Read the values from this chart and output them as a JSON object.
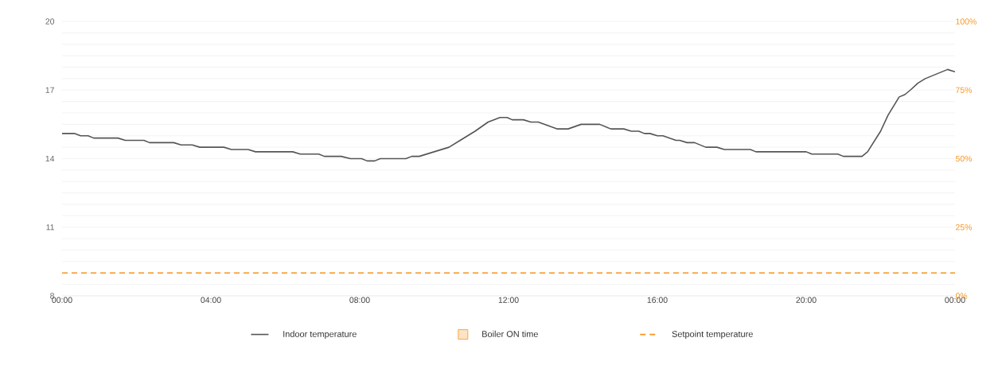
{
  "chart_data": {
    "type": "line",
    "xlim": [
      0,
      24
    ],
    "xticks": [
      {
        "value": 0,
        "label": "00:00"
      },
      {
        "value": 4,
        "label": "04:00"
      },
      {
        "value": 8,
        "label": "08:00"
      },
      {
        "value": 12,
        "label": "12:00"
      },
      {
        "value": 16,
        "label": "16:00"
      },
      {
        "value": 20,
        "label": "20:00"
      },
      {
        "value": 24,
        "label": "00:00"
      }
    ],
    "ylim": [
      8,
      20
    ],
    "yticks": [
      8,
      {
        "value": 8.5,
        "label": null
      },
      {
        "value": 9,
        "label": null
      },
      {
        "value": 9.5,
        "label": null
      },
      {
        "value": 10,
        "label": null
      },
      {
        "value": 10.5,
        "label": null
      },
      11,
      {
        "value": 11.5,
        "label": null
      },
      {
        "value": 12,
        "label": null
      },
      {
        "value": 12.5,
        "label": null
      },
      {
        "value": 13,
        "label": null
      },
      {
        "value": 13.5,
        "label": null
      },
      14,
      {
        "value": 14.5,
        "label": null
      },
      {
        "value": 15,
        "label": null
      },
      {
        "value": 15.5,
        "label": null
      },
      {
        "value": 16,
        "label": null
      },
      {
        "value": 16.5,
        "label": null
      },
      17,
      {
        "value": 17.5,
        "label": null
      },
      {
        "value": 18,
        "label": null
      },
      {
        "value": 18.5,
        "label": null
      },
      {
        "value": 19,
        "label": null
      },
      {
        "value": 19.5,
        "label": null
      },
      20
    ],
    "y2lim": [
      0,
      100
    ],
    "y2ticks": [
      {
        "value": 0,
        "label": "0%"
      },
      {
        "value": 25,
        "label": "25%"
      },
      {
        "value": 50,
        "label": "50%"
      },
      {
        "value": 75,
        "label": "75%"
      },
      {
        "value": 100,
        "label": "100%"
      }
    ],
    "grid": "y",
    "legend": "bottom",
    "marker": "none",
    "series": [
      {
        "name": "Indoor temperature",
        "color": "#555555",
        "line_style": "solid",
        "x": [
          0,
          0.33,
          0.5,
          0.7,
          0.85,
          1.5,
          1.7,
          2.2,
          2.35,
          3.0,
          3.2,
          3.5,
          3.7,
          4.35,
          4.55,
          5.0,
          5.2,
          6.2,
          6.4,
          6.9,
          7.05,
          7.5,
          7.75,
          8.05,
          8.2,
          8.4,
          8.55,
          9.24,
          9.4,
          9.6,
          10.4,
          10.7,
          11.1,
          11.45,
          11.77,
          11.96,
          12.1,
          12.4,
          12.6,
          12.8,
          13.3,
          13.6,
          13.95,
          14.45,
          14.75,
          15.1,
          15.3,
          15.5,
          15.65,
          15.8,
          16.0,
          16.15,
          16.5,
          16.6,
          16.8,
          17.0,
          17.3,
          17.6,
          17.8,
          18.5,
          18.65,
          20.0,
          20.15,
          20.85,
          21.0,
          21.5,
          21.65,
          22.0,
          22.2,
          22.5,
          22.65,
          22.8,
          23.0,
          23.2,
          23.8,
          24.0
        ],
        "values": [
          15.1,
          15.1,
          15.0,
          15.0,
          14.9,
          14.9,
          14.8,
          14.8,
          14.7,
          14.7,
          14.6,
          14.6,
          14.5,
          14.5,
          14.4,
          14.4,
          14.3,
          14.3,
          14.2,
          14.2,
          14.1,
          14.1,
          14.0,
          14.0,
          13.9,
          13.9,
          14.0,
          14.0,
          14.1,
          14.1,
          14.5,
          14.8,
          15.2,
          15.6,
          15.8,
          15.8,
          15.7,
          15.7,
          15.6,
          15.6,
          15.3,
          15.3,
          15.5,
          15.5,
          15.3,
          15.3,
          15.2,
          15.2,
          15.1,
          15.1,
          15.0,
          15.0,
          14.8,
          14.8,
          14.7,
          14.7,
          14.5,
          14.5,
          14.4,
          14.4,
          14.3,
          14.3,
          14.2,
          14.2,
          14.1,
          14.1,
          14.3,
          15.2,
          15.9,
          16.7,
          16.8,
          17.0,
          17.3,
          17.5,
          17.9,
          17.8
        ]
      },
      {
        "name": "Boiler ON time",
        "type": "bar",
        "axis": "y2",
        "color": "#f7941d"
      },
      {
        "name": "Setpoint temperature",
        "color": "#f7941d",
        "line_style": "dashed",
        "x": [
          0,
          24
        ],
        "values": [
          9,
          9
        ]
      }
    ]
  }
}
